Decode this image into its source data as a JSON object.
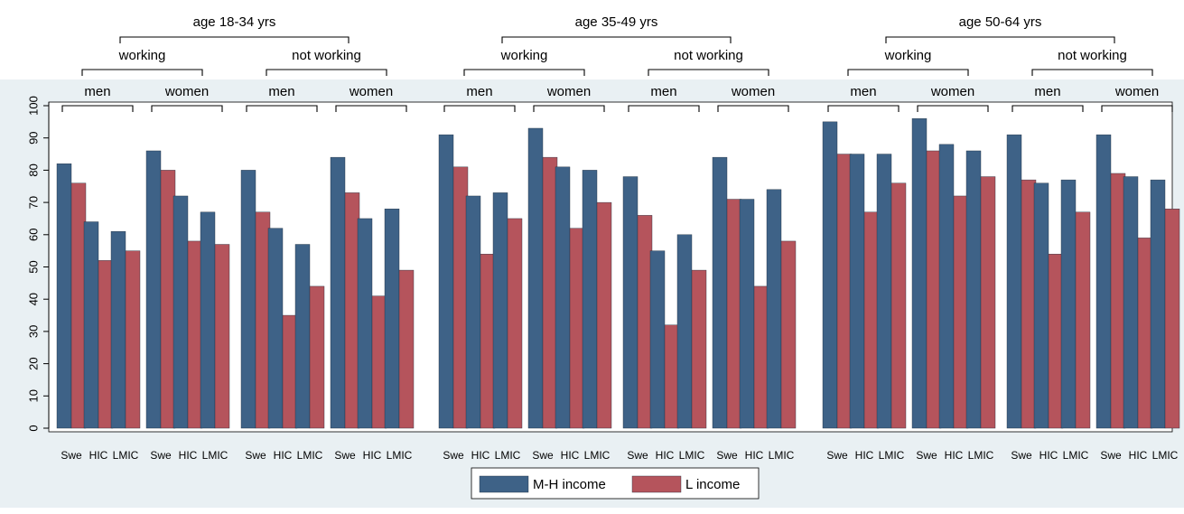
{
  "chart_data": {
    "type": "bar",
    "ylim": [
      0,
      100
    ],
    "yticks": [
      0,
      10,
      20,
      30,
      40,
      50,
      60,
      70,
      80,
      90,
      100
    ],
    "grid": false,
    "legend_position": "bottom-center",
    "age_groups": [
      "age 18-34 yrs",
      "age 35-49 yrs",
      "age 50-64 yrs"
    ],
    "work_status": [
      "working",
      "not working"
    ],
    "sexes": [
      "men",
      "women"
    ],
    "categories": [
      "Swe",
      "HIC",
      "LMIC"
    ],
    "series": [
      {
        "name": "M-H income",
        "color": "#3e6287",
        "values": [
          [
            [
              [
                82,
                64,
                61
              ],
              [
                86,
                72,
                67
              ]
            ],
            [
              [
                80,
                62,
                57
              ],
              [
                84,
                65,
                68
              ]
            ]
          ],
          [
            [
              [
                91,
                72,
                73
              ],
              [
                93,
                81,
                80
              ]
            ],
            [
              [
                78,
                55,
                60
              ],
              [
                84,
                71,
                74
              ]
            ]
          ],
          [
            [
              [
                95,
                85,
                85
              ],
              [
                96,
                88,
                86
              ]
            ],
            [
              [
                91,
                76,
                77
              ],
              [
                91,
                78,
                77
              ]
            ]
          ]
        ]
      },
      {
        "name": "L income",
        "color": "#b5545c",
        "values": [
          [
            [
              [
                76,
                52,
                55
              ],
              [
                80,
                58,
                57
              ]
            ],
            [
              [
                67,
                35,
                44
              ],
              [
                73,
                41,
                49
              ]
            ]
          ],
          [
            [
              [
                81,
                54,
                65
              ],
              [
                84,
                62,
                70
              ]
            ],
            [
              [
                66,
                32,
                49
              ],
              [
                71,
                44,
                58
              ]
            ]
          ],
          [
            [
              [
                85,
                67,
                76
              ],
              [
                86,
                72,
                78
              ]
            ],
            [
              [
                77,
                54,
                67
              ],
              [
                79,
                59,
                68
              ]
            ]
          ]
        ]
      }
    ]
  }
}
